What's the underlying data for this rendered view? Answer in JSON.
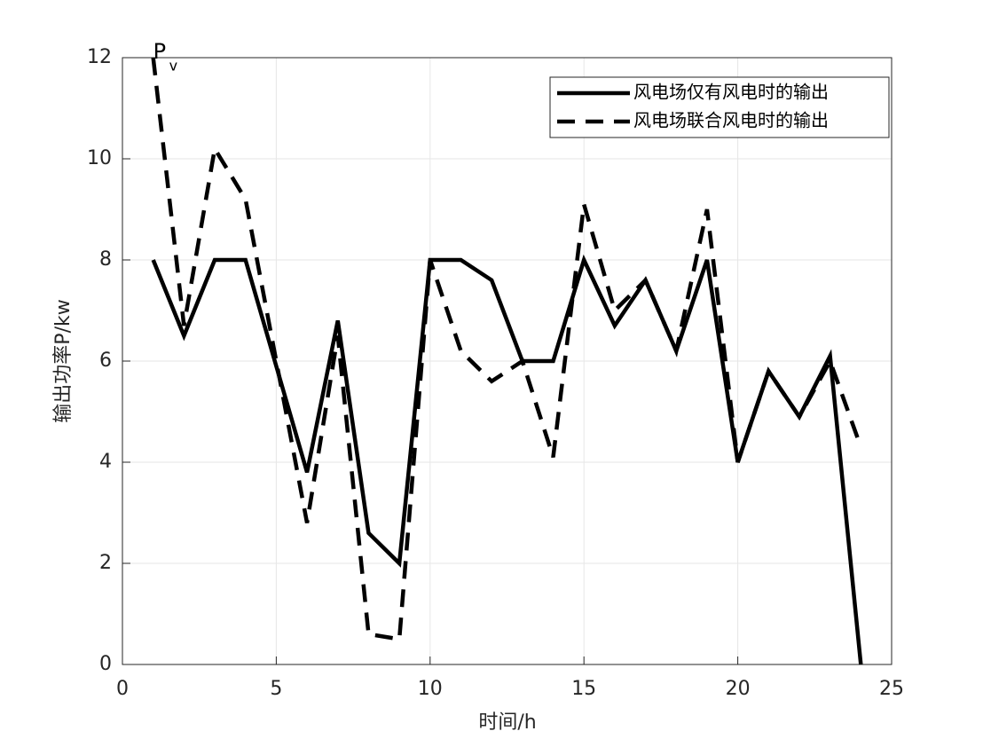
{
  "chart_data": {
    "type": "line",
    "xlabel": "时间/h",
    "ylabel": "输出功率P/kw",
    "annotation": {
      "main": "P",
      "sub": "v"
    },
    "x": [
      1,
      2,
      3,
      4,
      5,
      6,
      7,
      8,
      9,
      10,
      11,
      12,
      13,
      14,
      15,
      16,
      17,
      18,
      19,
      20,
      21,
      22,
      23,
      24
    ],
    "series": [
      {
        "name": "风电场联合风电时的输出",
        "color": "#000000",
        "dash": true,
        "values": [
          12,
          6.7,
          10.2,
          9.2,
          6,
          2.8,
          6.5,
          0.6,
          0.5,
          8,
          6.2,
          5.6,
          6,
          4.1,
          9.1,
          7,
          7.6,
          6.2,
          9,
          4,
          5.8,
          4.9,
          6,
          4.3
        ]
      },
      {
        "name": "风电场仅有风电时的输出",
        "color": "#000000",
        "dash": false,
        "values": [
          8,
          6.5,
          8,
          8,
          5.9,
          3.8,
          6.8,
          2.6,
          2,
          8,
          8,
          7.6,
          6,
          6,
          8,
          6.7,
          7.6,
          6.2,
          8,
          4,
          5.8,
          4.9,
          6.1,
          0
        ]
      }
    ],
    "legend_order": [
      1,
      0
    ],
    "legend": "top-right",
    "xlim": [
      0,
      25
    ],
    "xticks": [
      0,
      5,
      10,
      15,
      20,
      25
    ],
    "ylim": [
      0,
      12
    ],
    "yticks": [
      0,
      2,
      4,
      6,
      8,
      10,
      12
    ],
    "grid": true
  }
}
